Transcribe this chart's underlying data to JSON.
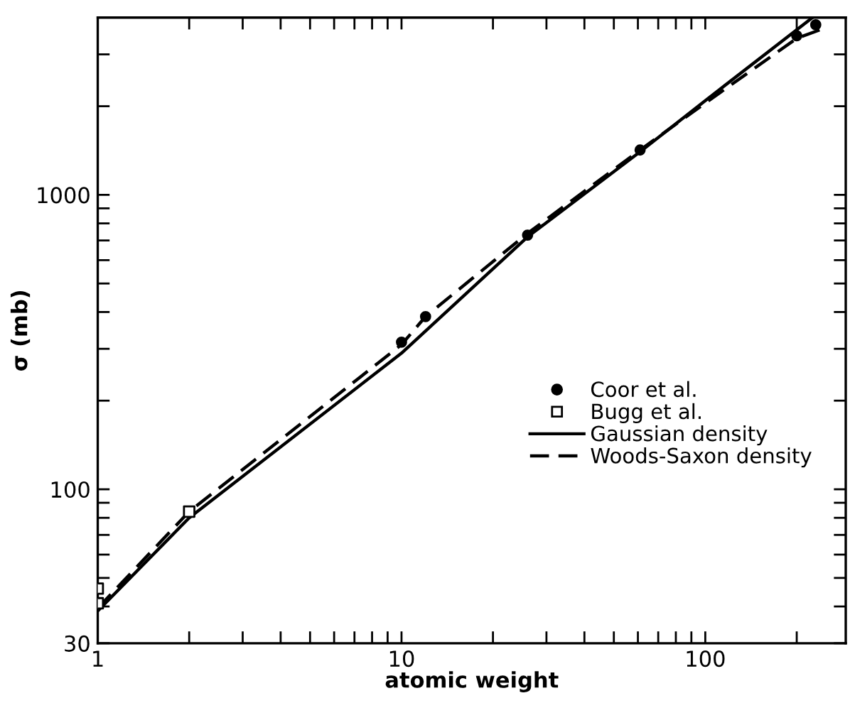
{
  "chart_data": {
    "type": "line",
    "xlabel": "atomic weight",
    "ylabel": "σ (mb)",
    "log": "xy",
    "grid": false,
    "legend": "right",
    "xlim": [
      1,
      290
    ],
    "ylim": [
      30,
      4000
    ],
    "xticks": [
      1,
      {
        "value": 2,
        "label": null
      },
      {
        "value": 3,
        "label": null
      },
      {
        "value": 4,
        "label": null
      },
      {
        "value": 5,
        "label": null
      },
      {
        "value": 6,
        "label": null
      },
      {
        "value": 7,
        "label": null
      },
      {
        "value": 8,
        "label": null
      },
      {
        "value": 9,
        "label": null
      },
      10,
      {
        "value": 20,
        "label": null
      },
      {
        "value": 30,
        "label": null
      },
      {
        "value": 40,
        "label": null
      },
      {
        "value": 50,
        "label": null
      },
      {
        "value": 60,
        "label": null
      },
      {
        "value": 70,
        "label": null
      },
      {
        "value": 80,
        "label": null
      },
      {
        "value": 90,
        "label": null
      },
      100,
      {
        "value": 200,
        "label": null
      }
    ],
    "yticks": [
      30,
      {
        "value": 40,
        "label": null
      },
      {
        "value": 50,
        "label": null
      },
      {
        "value": 60,
        "label": null
      },
      {
        "value": 70,
        "label": null
      },
      {
        "value": 80,
        "label": null
      },
      {
        "value": 90,
        "label": null
      },
      100,
      {
        "value": 200,
        "label": null
      },
      {
        "value": 300,
        "label": null
      },
      {
        "value": 400,
        "label": null
      },
      {
        "value": 500,
        "label": null
      },
      {
        "value": 600,
        "label": null
      },
      {
        "value": 700,
        "label": null
      },
      {
        "value": 800,
        "label": null
      },
      {
        "value": 900,
        "label": null
      },
      1000,
      {
        "value": 2000,
        "label": null
      },
      {
        "value": 3000,
        "label": null
      }
    ],
    "series": [
      {
        "name": "Coor et al.",
        "type": "scatter",
        "marker": "circle",
        "color": "#000000",
        "x": [
          10,
          12,
          26,
          61,
          200,
          231
        ],
        "values": [
          316,
          386,
          730,
          1420,
          3470,
          3780
        ]
      },
      {
        "name": "Bugg et al.",
        "type": "scatter",
        "marker": "square",
        "color": "#000000",
        "x": [
          1,
          1,
          2
        ],
        "values": [
          46,
          41,
          84
        ]
      },
      {
        "name": "Gaussian density",
        "line_style": "solid",
        "color": "#000000",
        "x": [
          1,
          2,
          10,
          26,
          61,
          100,
          224
        ],
        "values": [
          38.6,
          80,
          290,
          720,
          1400,
          2090,
          3980
        ]
      },
      {
        "name": "Woods-Saxon density",
        "line_style": "dashed",
        "color": "#000000",
        "x": [
          1,
          2,
          10,
          12,
          26,
          61,
          100,
          200,
          243
        ],
        "values": [
          39.5,
          84,
          310,
          386,
          740,
          1420,
          2050,
          3400,
          3660
        ]
      }
    ]
  }
}
